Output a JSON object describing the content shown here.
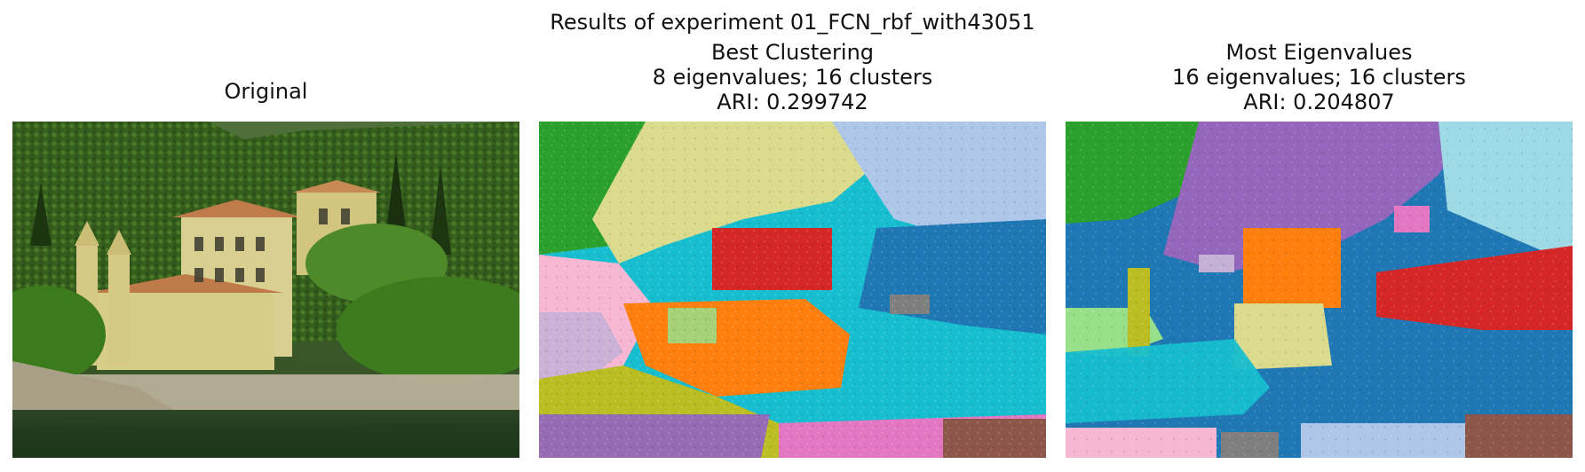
{
  "figure": {
    "suptitle": "Results of experiment 01_FCN_rbf_with43051"
  },
  "panels": [
    {
      "id": "original",
      "title_lines": [
        "Original"
      ]
    },
    {
      "id": "best",
      "title_lines": [
        "Best Clustering",
        "8 eigenvalues; 16 clusters",
        "ARI: 0.299742"
      ]
    },
    {
      "id": "most",
      "title_lines": [
        "Most Eigenvalues",
        "16 eigenvalues; 16 clusters",
        "ARI: 0.204807"
      ]
    }
  ],
  "palette": {
    "tab10_like": [
      "#1f77b4",
      "#ff7f0e",
      "#2ca02c",
      "#d62728",
      "#9467bd",
      "#8c564b",
      "#e377c2",
      "#7f7f7f",
      "#bcbd22",
      "#17becf",
      "#aec7e8",
      "#98df8a",
      "#f7b6d2",
      "#c5b0d5",
      "#dbdb8d",
      "#9edae5"
    ],
    "photo": {
      "sky_hill": "#3b5a2a",
      "trees_dark": "#1f3a12",
      "trees_mid": "#3f6b22",
      "villa_wall": "#d9cf90",
      "roof": "#c07b4b",
      "stone": "#b8b09a",
      "water": "#314a2b"
    }
  }
}
